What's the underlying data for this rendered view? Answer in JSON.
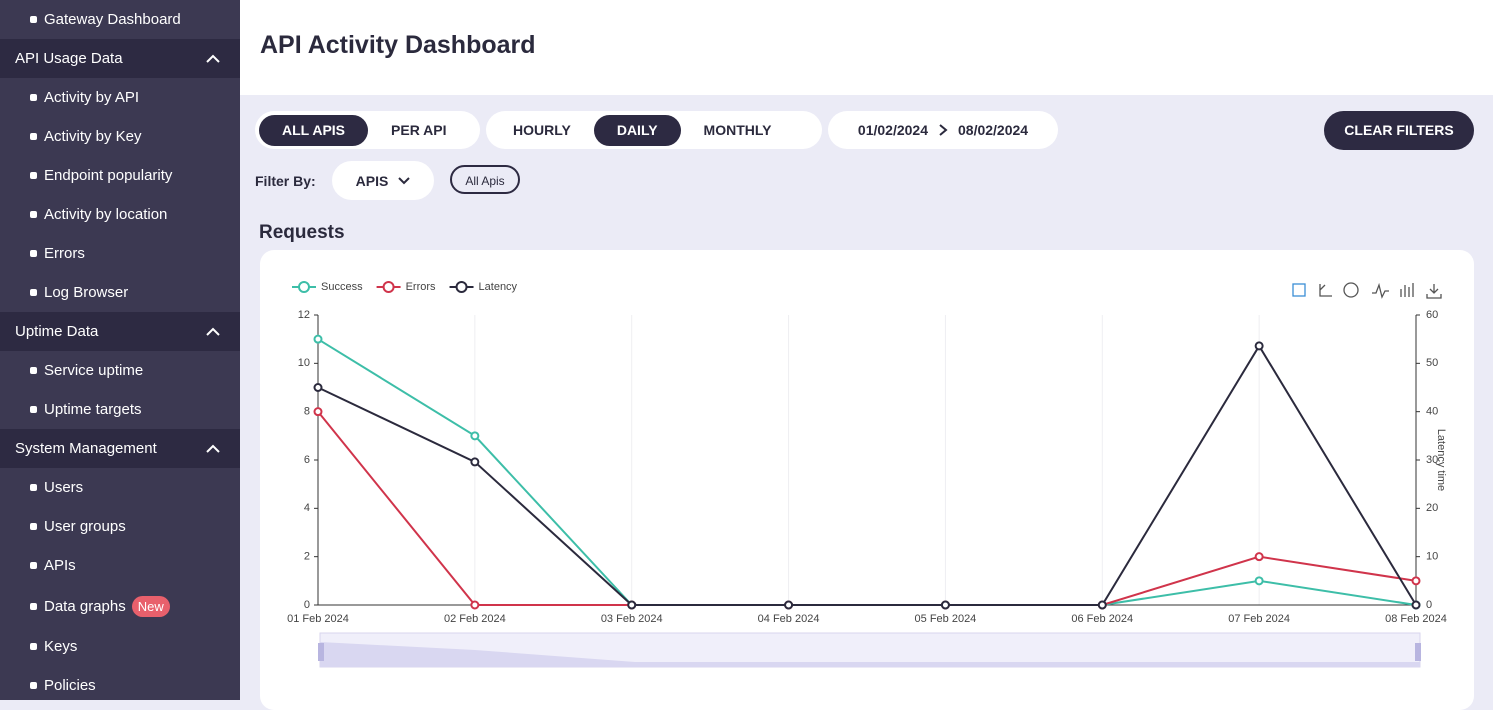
{
  "sidebar": {
    "top": "Gateway Dashboard",
    "sections": [
      {
        "title": "API Usage Data",
        "items": [
          {
            "label": "Activity by API"
          },
          {
            "label": "Activity by Key"
          },
          {
            "label": "Endpoint popularity"
          },
          {
            "label": "Activity by location"
          },
          {
            "label": "Errors"
          },
          {
            "label": "Log Browser"
          }
        ]
      },
      {
        "title": "Uptime Data",
        "items": [
          {
            "label": "Service uptime"
          },
          {
            "label": "Uptime targets"
          }
        ]
      },
      {
        "title": "System Management",
        "items": [
          {
            "label": "Users"
          },
          {
            "label": "User groups"
          },
          {
            "label": "APIs"
          },
          {
            "label": "Data graphs",
            "badge": "New"
          },
          {
            "label": "Keys"
          },
          {
            "label": "Policies"
          }
        ]
      }
    ]
  },
  "header": {
    "title": "API Activity Dashboard"
  },
  "filters": {
    "scope": [
      "ALL APIS",
      "PER API"
    ],
    "interval": [
      "HOURLY",
      "DAILY",
      "MONTHLY"
    ],
    "date_from": "01/02/2024",
    "date_to": "08/02/2024",
    "clear": "CLEAR FILTERS",
    "filter_label": "Filter By:",
    "dropdown": "APIS",
    "chip": "All Apis"
  },
  "chart_data": {
    "type": "line",
    "title": "Requests",
    "categories": [
      "01 Feb 2024",
      "02 Feb 2024",
      "03 Feb 2024",
      "04 Feb 2024",
      "05 Feb 2024",
      "06 Feb 2024",
      "07 Feb 2024",
      "08 Feb 2024"
    ],
    "series": [
      {
        "name": "Success",
        "color": "#3dbea8",
        "values": [
          11,
          7,
          0,
          0,
          0,
          0,
          1,
          0
        ]
      },
      {
        "name": "Errors",
        "color": "#d0344b",
        "values": [
          8,
          0,
          0,
          0,
          0,
          0,
          2,
          1
        ]
      },
      {
        "name": "Latency",
        "color": "#2b2a3d",
        "axis": "y2",
        "values": [
          45,
          29.6,
          0,
          0,
          0,
          0,
          53.6,
          0
        ]
      }
    ],
    "ylim": [
      0,
      12
    ],
    "yticks": [
      0,
      2,
      4,
      6,
      8,
      10,
      12
    ],
    "y2lim": [
      0,
      60
    ],
    "y2ticks": [
      0,
      10,
      20,
      30,
      40,
      50,
      60
    ],
    "y2_label": "Latency time",
    "grid": true,
    "legend": "top-left"
  }
}
